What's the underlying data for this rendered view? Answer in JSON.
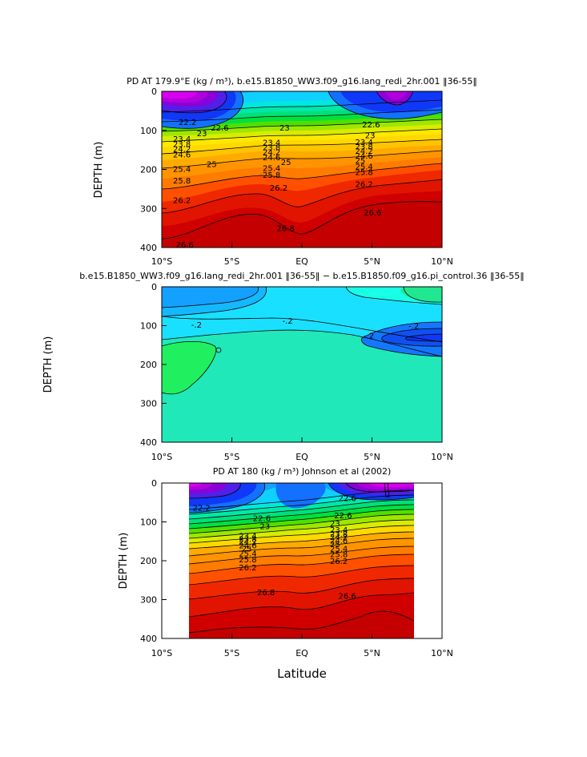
{
  "chart_data": [
    {
      "type": "contour",
      "title": "PD AT 179.9°E (kg / m³), b.e15.B1850_WW3.f09_g16.lang_redi_2hr.001 ‖36-55‖",
      "xlabel": "",
      "ylabel": "DEPTH (m)",
      "xticks": [
        "10°S",
        "5°S",
        "EQ",
        "5°N",
        "10°N"
      ],
      "yticks": [
        "0",
        "100",
        "200",
        "300",
        "400"
      ],
      "xlim": [
        -10,
        10
      ],
      "ylim": [
        400,
        0
      ],
      "contour_labels": [
        {
          "text": "22.2",
          "lat": -8.8,
          "depth": 78
        },
        {
          "text": "22.6",
          "lat": -6.5,
          "depth": 92
        },
        {
          "text": "23",
          "lat": -7.5,
          "depth": 107
        },
        {
          "text": "23",
          "lat": -1.6,
          "depth": 92
        },
        {
          "text": "22.6",
          "lat": 4.3,
          "depth": 84
        },
        {
          "text": "23",
          "lat": 4.5,
          "depth": 112
        },
        {
          "text": "23.4",
          "lat": -9.2,
          "depth": 121
        },
        {
          "text": "23.8",
          "lat": -9.2,
          "depth": 134
        },
        {
          "text": "24.2",
          "lat": -9.2,
          "depth": 147
        },
        {
          "text": "24.6",
          "lat": -9.2,
          "depth": 161
        },
        {
          "text": "25",
          "lat": -6.8,
          "depth": 186
        },
        {
          "text": "25.4",
          "lat": -9.2,
          "depth": 198
        },
        {
          "text": "25.8",
          "lat": -9.2,
          "depth": 228
        },
        {
          "text": "26.2",
          "lat": -9.2,
          "depth": 278
        },
        {
          "text": "23.4",
          "lat": -2.8,
          "depth": 130
        },
        {
          "text": "23.8",
          "lat": -2.8,
          "depth": 143
        },
        {
          "text": "24.2",
          "lat": -2.8,
          "depth": 155
        },
        {
          "text": "24.6",
          "lat": -2.8,
          "depth": 168
        },
        {
          "text": "25",
          "lat": -1.5,
          "depth": 181
        },
        {
          "text": "25.4",
          "lat": -2.8,
          "depth": 196
        },
        {
          "text": "25.8",
          "lat": -2.8,
          "depth": 213
        },
        {
          "text": "26.2",
          "lat": -2.3,
          "depth": 246
        },
        {
          "text": "23.4",
          "lat": 3.8,
          "depth": 129
        },
        {
          "text": "23.8",
          "lat": 3.8,
          "depth": 141
        },
        {
          "text": "24.2",
          "lat": 3.8,
          "depth": 152
        },
        {
          "text": "24.6",
          "lat": 3.8,
          "depth": 164
        },
        {
          "text": "25",
          "lat": 3.8,
          "depth": 176
        },
        {
          "text": "25.4",
          "lat": 3.8,
          "depth": 192
        },
        {
          "text": "25.8",
          "lat": 3.8,
          "depth": 206
        },
        {
          "text": "26.2",
          "lat": 3.8,
          "depth": 237
        },
        {
          "text": "26.6",
          "lat": 4.4,
          "depth": 310
        },
        {
          "text": "26.8",
          "lat": -1.8,
          "depth": 350
        },
        {
          "text": "26.6",
          "lat": -9.0,
          "depth": 392
        }
      ]
    },
    {
      "type": "contour",
      "title": "b.e15.B1850_WW3.f09_g16.lang_redi_2hr.001 ‖36-55‖ − b.e15.B1850.f09_g16.pi_control.36 ‖36-55‖",
      "xlabel": "",
      "ylabel": "DEPTH (m)",
      "xticks": [
        "10°S",
        "5°S",
        "EQ",
        "5°N",
        "10°N"
      ],
      "yticks": [
        "0",
        "100",
        "200",
        "300",
        "400"
      ],
      "xlim": [
        -10,
        10
      ],
      "ylim": [
        400,
        0
      ],
      "contour_labels": [
        {
          "text": "-.2",
          "lat": -7.9,
          "depth": 97
        },
        {
          "text": "-.2",
          "lat": -1.4,
          "depth": 87
        },
        {
          "text": "-.2",
          "lat": 4.4,
          "depth": 125
        },
        {
          "text": "-.2",
          "lat": 7.6,
          "depth": 100
        }
      ]
    },
    {
      "type": "contour",
      "title": "PD AT 180 (kg / m³) Johnson et al (2002)",
      "xlabel": "Latitude",
      "ylabel": "DEPTH (m)",
      "xticks": [
        "10°S",
        "5°S",
        "EQ",
        "5°N",
        "10°N"
      ],
      "yticks": [
        "0",
        "100",
        "200",
        "300",
        "400"
      ],
      "xlim": [
        -10,
        10
      ],
      "ylim": [
        400,
        0
      ],
      "data_lat_range": [
        -8,
        8
      ],
      "contour_labels": [
        {
          "text": "22.2",
          "lat": -7.8,
          "depth": 63
        },
        {
          "text": "22.6",
          "lat": -3.5,
          "depth": 90
        },
        {
          "text": "23",
          "lat": -3,
          "depth": 110
        },
        {
          "text": "22.6",
          "lat": 2.6,
          "depth": 38
        },
        {
          "text": "22.6",
          "lat": 2.3,
          "depth": 82
        },
        {
          "text": "23",
          "lat": 2.0,
          "depth": 103
        },
        {
          "text": "23.4",
          "lat": -4.5,
          "depth": 135
        },
        {
          "text": "23.8",
          "lat": -4.5,
          "depth": 143
        },
        {
          "text": "24.2",
          "lat": -4.5,
          "depth": 151
        },
        {
          "text": "24.6",
          "lat": -4.5,
          "depth": 160
        },
        {
          "text": "25",
          "lat": -4.3,
          "depth": 168
        },
        {
          "text": "25.4",
          "lat": -4.5,
          "depth": 180
        },
        {
          "text": "25.8",
          "lat": -4.5,
          "depth": 196
        },
        {
          "text": "26.2",
          "lat": -4.5,
          "depth": 216
        },
        {
          "text": "23.4",
          "lat": 2.0,
          "depth": 120
        },
        {
          "text": "23.8",
          "lat": 2.0,
          "depth": 130
        },
        {
          "text": "24.2",
          "lat": 2.0,
          "depth": 138
        },
        {
          "text": "24.6",
          "lat": 2.0,
          "depth": 147
        },
        {
          "text": "25",
          "lat": 2.0,
          "depth": 157
        },
        {
          "text": "25.4",
          "lat": 2.0,
          "depth": 168
        },
        {
          "text": "25.8",
          "lat": 2.0,
          "depth": 182
        },
        {
          "text": "26.2",
          "lat": 2.0,
          "depth": 200
        },
        {
          "text": "26.8",
          "lat": -3.2,
          "depth": 280
        },
        {
          "text": "26.6",
          "lat": 2.6,
          "depth": 290
        }
      ]
    }
  ],
  "colors": {
    "density_levels": [
      "#d800f0",
      "#b000dc",
      "#8c00d8",
      "#5020e8",
      "#1038f8",
      "#1470ff",
      "#14a0ff",
      "#0fd0ff",
      "#00e8e0",
      "#00e8a8",
      "#00e07a",
      "#00e040",
      "#50e000",
      "#9ee600",
      "#d8ec00",
      "#ffd800",
      "#ffaa00",
      "#ff7c00",
      "#ff5000",
      "#f02800",
      "#e01400",
      "#d00000",
      "#c40000"
    ],
    "diff_levels": [
      "#00e07a",
      "#1ee8c0",
      "#1ae0ff",
      "#0cb0ff",
      "#1470ff",
      "#20ff6a"
    ]
  }
}
